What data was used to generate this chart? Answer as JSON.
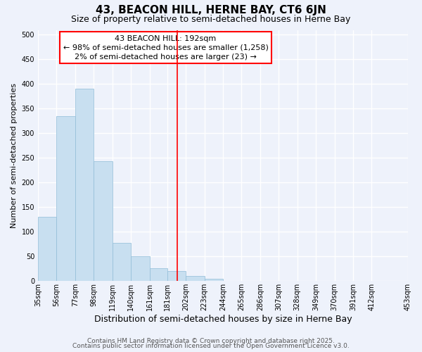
{
  "title": "43, BEACON HILL, HERNE BAY, CT6 6JN",
  "subtitle": "Size of property relative to semi-detached houses in Herne Bay",
  "xlabel": "Distribution of semi-detached houses by size in Herne Bay",
  "ylabel": "Number of semi-detached properties",
  "bar_values": [
    130,
    335,
    390,
    243,
    78,
    50,
    26,
    20,
    10,
    5,
    0,
    0,
    0,
    0,
    0,
    0,
    0,
    1,
    0
  ],
  "bin_edges": [
    35,
    56,
    77,
    98,
    119,
    140,
    161,
    181,
    202,
    223,
    244,
    265,
    286,
    307,
    328,
    349,
    370,
    391,
    412,
    453
  ],
  "tick_labels": [
    "35sqm",
    "56sqm",
    "77sqm",
    "98sqm",
    "119sqm",
    "140sqm",
    "161sqm",
    "181sqm",
    "202sqm",
    "223sqm",
    "244sqm",
    "265sqm",
    "286sqm",
    "307sqm",
    "328sqm",
    "349sqm",
    "370sqm",
    "391sqm",
    "412sqm",
    "453sqm"
  ],
  "bar_color": "#c8dff0",
  "bar_edge_color": "#90bcd8",
  "vline_x": 192,
  "vline_color": "red",
  "annotation_line1": "43 BEACON HILL: 192sqm",
  "annotation_line2": "← 98% of semi-detached houses are smaller (1,258)",
  "annotation_line3": "2% of semi-detached houses are larger (23) →",
  "ylim": [
    0,
    510
  ],
  "yticks": [
    0,
    50,
    100,
    150,
    200,
    250,
    300,
    350,
    400,
    450,
    500
  ],
  "bg_color": "#eef2fb",
  "grid_color": "#ffffff",
  "footer1": "Contains HM Land Registry data © Crown copyright and database right 2025.",
  "footer2": "Contains public sector information licensed under the Open Government Licence v3.0.",
  "title_fontsize": 11,
  "subtitle_fontsize": 9,
  "xlabel_fontsize": 9,
  "ylabel_fontsize": 8,
  "tick_fontsize": 7,
  "annotation_fontsize": 8,
  "footer_fontsize": 6.5
}
